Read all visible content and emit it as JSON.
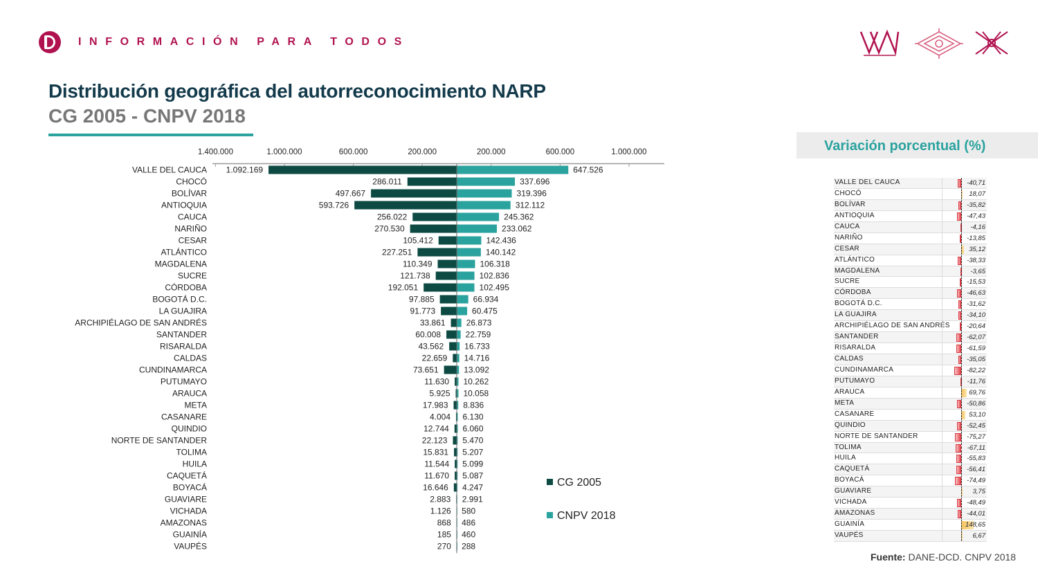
{
  "header": {
    "tagline": "INFORMACIÓN PARA TODOS"
  },
  "title": "Distribución geográfica del autorreconocimiento NARP",
  "subtitle": "CG 2005 - CNPV 2018",
  "colors": {
    "brand": "#b0124f",
    "title": "#133a4b",
    "series_2005": "#0c4a43",
    "series_2018": "#2aa29e",
    "negative": "#e5474f",
    "positive": "#f6c25a"
  },
  "chart_data": [
    {
      "type": "bar",
      "orientation": "horizontal-pyramid",
      "categories": [
        "VALLE DEL CAUCA",
        "CHOCÓ",
        "BOLÍVAR",
        "ANTIOQUIA",
        "CAUCA",
        "NARIÑO",
        "CESAR",
        "ATLÁNTICO",
        "MAGDALENA",
        "SUCRE",
        "CÓRDOBA",
        "BOGOTÁ D.C.",
        "LA GUAJIRA",
        "ARCHIPIÉLAGO DE SAN ANDRÉS",
        "SANTANDER",
        "RISARALDA",
        "CALDAS",
        "CUNDINAMARCA",
        "PUTUMAYO",
        "ARAUCA",
        "META",
        "CASANARE",
        "QUINDIO",
        "NORTE DE SANTANDER",
        "TOLIMA",
        "HUILA",
        "CAQUETÁ",
        "BOYACÁ",
        "GUAVIARE",
        "VICHADA",
        "AMAZONAS",
        "GUAINÍA",
        "VAUPÉS"
      ],
      "series": [
        {
          "name": "CG 2005",
          "values": [
            1092169,
            286011,
            497667,
            593726,
            256022,
            270530,
            105412,
            227251,
            110349,
            121738,
            192051,
            97885,
            91773,
            33861,
            60008,
            43562,
            22659,
            73651,
            11630,
            5925,
            17983,
            4004,
            12744,
            22123,
            15831,
            11544,
            11670,
            16646,
            2883,
            1126,
            868,
            185,
            270
          ],
          "labels": [
            "1.092.169",
            "286.011",
            "497.667",
            "593.726",
            "256.022",
            "270.530",
            "105.412",
            "227.251",
            "110.349",
            "121.738",
            "192.051",
            "97.885",
            "91.773",
            "33.861",
            "60.008",
            "43.562",
            "22.659",
            "73.651",
            "11.630",
            "5.925",
            "17.983",
            "4.004",
            "12.744",
            "22.123",
            "15.831",
            "11.544",
            "11.670",
            "16.646",
            "2.883",
            "1.126",
            "868",
            "185",
            "270"
          ]
        },
        {
          "name": "CNPV 2018",
          "values": [
            647526,
            337696,
            319396,
            312112,
            245362,
            233062,
            142436,
            140142,
            106318,
            102836,
            102495,
            66934,
            60475,
            26873,
            22759,
            16733,
            14716,
            13092,
            10262,
            10058,
            8836,
            6130,
            6060,
            5470,
            5207,
            5099,
            5087,
            4247,
            2991,
            580,
            486,
            460,
            288
          ],
          "labels": [
            "647.526",
            "337.696",
            "319.396",
            "312.112",
            "245.362",
            "233.062",
            "142.436",
            "140.142",
            "106.318",
            "102.836",
            "102.495",
            "66.934",
            "60.475",
            "26.873",
            "22.759",
            "16.733",
            "14.716",
            "13.092",
            "10.262",
            "10.058",
            "8.836",
            "6.130",
            "6.060",
            "5.470",
            "5.207",
            "5.099",
            "5.087",
            "4.247",
            "2.991",
            "580",
            "486",
            "460",
            "288"
          ]
        }
      ],
      "axis_ticks": {
        "left": [
          {
            "value": 1400000,
            "label": "1.400.000"
          },
          {
            "value": 1000000,
            "label": "1.000.000"
          },
          {
            "value": 600000,
            "label": "600.000"
          },
          {
            "value": 200000,
            "label": "200.000"
          }
        ],
        "right": [
          {
            "value": 200000,
            "label": "200.000"
          },
          {
            "value": 600000,
            "label": "600.000"
          },
          {
            "value": 1000000,
            "label": "1.000.000"
          }
        ]
      },
      "xlim": [
        -1400000,
        1200000
      ],
      "legend_position": "bottom-right"
    },
    {
      "type": "bar",
      "title": "Variación porcentual (%)",
      "categories": [
        "VALLE DEL CAUCA",
        "CHOCÓ",
        "BOLÍVAR",
        "ANTIOQUIA",
        "CAUCA",
        "NARIÑO",
        "CESAR",
        "ATLÁNTICO",
        "MAGDALENA",
        "SUCRE",
        "CÓRDOBA",
        "BOGOTÁ D.C.",
        "LA GUAJIRA",
        "ARCHIPIÉLAGO DE SAN ANDRÉS",
        "SANTANDER",
        "RISARALDA",
        "CALDAS",
        "CUNDINAMARCA",
        "PUTUMAYO",
        "ARAUCA",
        "META",
        "CASANARE",
        "QUINDIO",
        "NORTE DE SANTANDER",
        "TOLIMA",
        "HUILA",
        "CAQUETÁ",
        "BOYACÁ",
        "GUAVIARE",
        "VICHADA",
        "AMAZONAS",
        "GUAINÍA",
        "VAUPÉS"
      ],
      "values": [
        -40.71,
        18.07,
        -35.82,
        -47.43,
        -4.16,
        -13.85,
        35.12,
        -38.33,
        -3.65,
        -15.53,
        -46.63,
        -31.62,
        -34.1,
        -20.64,
        -62.07,
        -61.59,
        -35.05,
        -82.22,
        -11.76,
        69.76,
        -50.86,
        53.1,
        -52.45,
        -75.27,
        -67.11,
        -55.83,
        -56.41,
        -74.49,
        3.75,
        -48.49,
        -44.01,
        148.65,
        6.67
      ],
      "labels": [
        "-40,71",
        "18,07",
        "-35,82",
        "-47,43",
        "-4,16",
        "-13,85",
        "35,12",
        "-38,33",
        "-3,65",
        "-15,53",
        "-46,63",
        "-31,62",
        "-34,10",
        "-20,64",
        "-62,07",
        "-61,59",
        "-35,05",
        "-82,22",
        "-11,76",
        "69,76",
        "-50,86",
        "53,10",
        "-52,45",
        "-75,27",
        "-67,11",
        "-55,83",
        "-56,41",
        "-74,49",
        "3,75",
        "-48,49",
        "-44,01",
        "148,65",
        "6,67"
      ]
    }
  ],
  "source": {
    "label": "Fuente:",
    "text": "DANE-DCD. CNPV 2018"
  }
}
